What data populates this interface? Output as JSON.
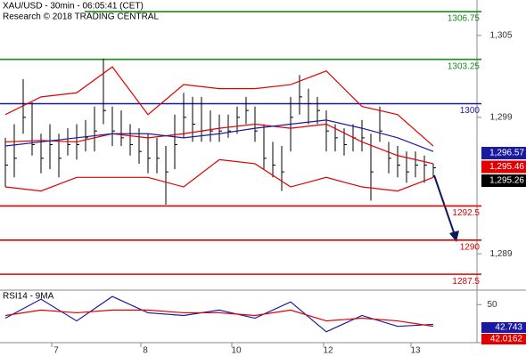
{
  "chart_data": {
    "type": "ohlc",
    "title": "XAU/USD - 30min - 06:05:41 (CET)",
    "subtitle": "Research © 2018 TRADING CENTRAL",
    "ylim": [
      1286.4,
      1307.6
    ],
    "yticks": [
      {
        "value": 1305,
        "label": "1,305"
      },
      {
        "value": 1299,
        "label": "1,299"
      },
      {
        "value": 1289,
        "label": "1,289"
      }
    ],
    "bar_color": "#000000",
    "bars": {
      "high": [
        1297.5,
        1298.5,
        1301.8,
        1300.1,
        1297.8,
        1298.5,
        1297.8,
        1298.2,
        1298.5,
        1298.8,
        1299.8,
        1303.3,
        1299.8,
        1299.5,
        1298.5,
        1298.2,
        1297.8,
        1297.5,
        1296.9,
        1299.2,
        1300.8,
        1300.5,
        1300.5,
        1299.5,
        1299.2,
        1299.2,
        1299.8,
        1300.5,
        1299.8,
        1298.5,
        1297.2,
        1296.9,
        1300.5,
        1302.1,
        1301.1,
        1300.5,
        1299.5,
        1298.5,
        1298.2,
        1298.5,
        1298.8,
        1297.8,
        1299.8,
        1297.2,
        1296.9,
        1296.5,
        1296.5,
        1296.2,
        1295.6
      ],
      "low": [
        1293.9,
        1294.6,
        1297.8,
        1296.2,
        1294.9,
        1295.2,
        1294.6,
        1296.2,
        1295.9,
        1296.5,
        1296.5,
        1298.5,
        1296.9,
        1296.9,
        1296.2,
        1295.6,
        1294.9,
        1294.9,
        1292.6,
        1295.2,
        1297.5,
        1297.2,
        1297.2,
        1297.2,
        1297.2,
        1297.5,
        1297.8,
        1298.5,
        1297.2,
        1295.2,
        1294.6,
        1293.6,
        1296.5,
        1299.2,
        1298.5,
        1298.5,
        1296.5,
        1296.5,
        1296.2,
        1296.5,
        1296.5,
        1292.9,
        1297.2,
        1294.9,
        1294.6,
        1294.2,
        1294.6,
        1294.2,
        1294.6
      ],
      "close": [
        1295.5,
        1296,
        1299,
        1297,
        1296,
        1297,
        1296,
        1297,
        1297,
        1297.5,
        1298,
        1299.5,
        1298,
        1297.5,
        1297,
        1296.5,
        1296,
        1296,
        1295,
        1297,
        1299,
        1298.5,
        1298,
        1298,
        1298,
        1298,
        1299,
        1299.5,
        1298,
        1296,
        1295.5,
        1295,
        1299,
        1300.5,
        1300,
        1299.5,
        1298,
        1297.5,
        1297,
        1297.5,
        1297.5,
        1295,
        1298,
        1296,
        1295.5,
        1295,
        1295.5,
        1295.5,
        1295.3
      ]
    },
    "series": [
      {
        "name": null,
        "color": "#e00000",
        "x": [
          0,
          4,
          8,
          12,
          16,
          20,
          24,
          28,
          32,
          36,
          40,
          44,
          48
        ],
        "values": [
          1299.2,
          1300.5,
          1300.8,
          1302.7,
          1299.2,
          1301.4,
          1301.1,
          1301.1,
          1301.4,
          1302.4,
          1299.8,
          1299.2,
          1296.9
        ]
      },
      {
        "name": null,
        "color": "#e00000",
        "x": [
          0,
          4,
          8,
          12,
          16,
          20,
          24,
          28,
          32,
          36,
          40,
          44,
          48
        ],
        "values": [
          1293.9,
          1293.6,
          1294.6,
          1294.6,
          1294.6,
          1293.9,
          1295.9,
          1295.6,
          1293.9,
          1294.6,
          1293.9,
          1293.6,
          1294.6
        ]
      },
      {
        "name": null,
        "color": "#e00000",
        "x": [
          0,
          4,
          8,
          12,
          16,
          20,
          24,
          28,
          32,
          36,
          40,
          44,
          48
        ],
        "values": [
          1297.2,
          1297.3,
          1297.2,
          1297.8,
          1297.5,
          1297.8,
          1298.2,
          1298.5,
          1298.2,
          1298.5,
          1297.2,
          1296.2,
          1295.6
        ]
      },
      {
        "name": null,
        "color": "#1a1aa0",
        "x": [
          0,
          4,
          8,
          12,
          16,
          20,
          24,
          28,
          32,
          36,
          40,
          44,
          48
        ],
        "values": [
          1296.9,
          1297.2,
          1297.5,
          1297.8,
          1297.8,
          1297.5,
          1297.8,
          1298.2,
          1298.5,
          1298.8,
          1298.2,
          1297.5,
          1296.5
        ]
      }
    ],
    "levels": [
      {
        "value": 1306.75,
        "color": "#1a8a1a"
      },
      {
        "value": 1303.25,
        "color": "#1a8a1a"
      },
      {
        "value": 1300,
        "color": "#1a1aa0"
      },
      {
        "value": 1292.5,
        "color": "#e00000"
      },
      {
        "value": 1290,
        "color": "#e00000"
      },
      {
        "value": 1287.5,
        "color": "#e00000"
      }
    ],
    "price_boxes": [
      {
        "value": {
          "value": 1296.57,
          "label": "1,296.57"
        },
        "color": "#1a1aa0"
      },
      {
        "value": {
          "value": 1295.46,
          "label": "1,295.46"
        },
        "color": "#e00000"
      },
      {
        "value": {
          "value": 1295.26,
          "label": "1,295.26"
        },
        "color": "#000000"
      }
    ],
    "categories": [
      "7",
      "8",
      "10",
      "12",
      "13"
    ],
    "rsi": {
      "title": "RSI14 - 9MA",
      "ylim": [
        36,
        55
      ],
      "yticks": [
        50
      ],
      "series": [
        {
          "name": null,
          "color": "#1a1aa0",
          "x": [
            0,
            4,
            8,
            12,
            16,
            20,
            24,
            28,
            32,
            36,
            40,
            44,
            48
          ],
          "values": [
            45,
            52,
            44,
            53,
            47,
            46,
            48,
            45,
            51,
            40,
            46,
            42,
            42.743
          ]
        },
        {
          "name": null,
          "color": "#e00000",
          "x": [
            0,
            4,
            8,
            12,
            16,
            20,
            24,
            28,
            32,
            36,
            40,
            44,
            48
          ],
          "values": [
            46,
            48,
            47,
            48,
            48,
            47,
            47,
            46,
            48,
            44,
            45,
            44,
            42.0162
          ]
        }
      ],
      "boxes": [
        {
          "value": 42.743,
          "color": "#1a1aa0"
        },
        {
          "value": 42.0162,
          "color": "#e00000"
        }
      ]
    }
  }
}
